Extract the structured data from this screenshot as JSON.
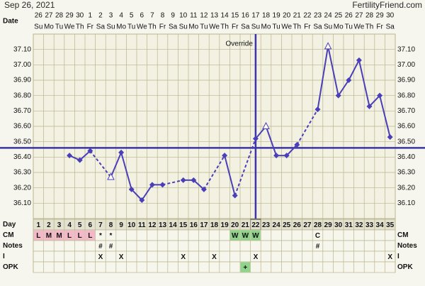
{
  "header": {
    "title": "Sep 26, 2021",
    "site": "FertilityFriend.com"
  },
  "chart_data": {
    "type": "line",
    "date_label": "Date",
    "dates": [
      26,
      27,
      28,
      29,
      30,
      1,
      2,
      3,
      4,
      5,
      6,
      7,
      8,
      9,
      10,
      11,
      12,
      13,
      14,
      15,
      16,
      17,
      18,
      19,
      20,
      21,
      22,
      23,
      24,
      25,
      26,
      27,
      28,
      29,
      30
    ],
    "weekdays": [
      "Su",
      "Mo",
      "Tu",
      "We",
      "Th",
      "Fr",
      "Sa",
      "Su",
      "Mo",
      "Tu",
      "We",
      "Th",
      "Fr",
      "Sa",
      "Su",
      "Mo",
      "Tu",
      "We",
      "Th",
      "Fr",
      "Sa",
      "Su",
      "Mo",
      "Tu",
      "We",
      "Th",
      "Fr",
      "Sa",
      "Su",
      "Mo",
      "Tu",
      "We",
      "Th",
      "Fr",
      "Sa"
    ],
    "series": [
      {
        "name": "Temperature",
        "color": "#4b3fb8",
        "values": [
          null,
          null,
          null,
          36.41,
          36.38,
          36.44,
          null,
          36.27,
          36.43,
          36.19,
          36.12,
          36.22,
          36.22,
          null,
          36.25,
          36.25,
          36.19,
          null,
          36.41,
          36.15,
          null,
          36.52,
          36.6,
          36.41,
          36.41,
          36.48,
          null,
          36.71,
          37.12,
          36.8,
          36.9,
          37.03,
          36.73,
          36.8,
          36.53
        ]
      }
    ],
    "open_points": [
      8,
      23,
      29
    ],
    "coverline": 36.46,
    "coverline_color": "#3b35a8",
    "ovulation_day": 22,
    "override_label": "Override",
    "ylim": [
      36.0,
      37.2
    ],
    "yticks": [
      {
        "value": 36.1,
        "label": "36.10"
      },
      {
        "value": 36.2,
        "label": "36.20"
      },
      {
        "value": 36.3,
        "label": "36.30"
      },
      {
        "value": 36.4,
        "label": "36.40"
      },
      {
        "value": 36.5,
        "label": "36.50"
      },
      {
        "value": 36.6,
        "label": "36.60"
      },
      {
        "value": 36.7,
        "label": "36.70"
      },
      {
        "value": 36.8,
        "label": "36.80"
      },
      {
        "value": 36.9,
        "label": "36.90"
      },
      {
        "value": 37.0,
        "label": "37.00"
      },
      {
        "value": 37.1,
        "label": "37.10"
      }
    ],
    "grid": true,
    "rows": [
      {
        "label": "Day",
        "cells": [
          1,
          2,
          3,
          4,
          5,
          6,
          7,
          8,
          9,
          10,
          11,
          12,
          13,
          14,
          15,
          16,
          17,
          18,
          19,
          20,
          21,
          22,
          23,
          24,
          25,
          26,
          27,
          28,
          29,
          30,
          31,
          32,
          33,
          34,
          35
        ]
      },
      {
        "label": "CM",
        "cells": [
          "L",
          "M",
          "M",
          "L",
          "L",
          "L",
          "*",
          "*",
          null,
          null,
          null,
          null,
          null,
          null,
          null,
          null,
          null,
          null,
          null,
          "W",
          "W",
          "W",
          null,
          null,
          null,
          null,
          null,
          "C",
          null,
          null,
          null,
          null,
          null,
          null,
          null
        ]
      },
      {
        "label": "Notes",
        "cells": [
          null,
          null,
          null,
          null,
          null,
          null,
          "#",
          "#",
          null,
          null,
          null,
          null,
          null,
          null,
          null,
          null,
          null,
          null,
          null,
          null,
          null,
          null,
          null,
          null,
          null,
          null,
          null,
          "#",
          null,
          null,
          null,
          null,
          null,
          null,
          null
        ]
      },
      {
        "label": "I",
        "cells": [
          null,
          null,
          null,
          null,
          null,
          null,
          "X",
          null,
          "X",
          null,
          null,
          null,
          null,
          null,
          "X",
          null,
          null,
          "X",
          null,
          null,
          null,
          "X",
          null,
          null,
          null,
          null,
          null,
          null,
          null,
          null,
          null,
          null,
          null,
          null,
          "X"
        ]
      },
      {
        "label": "OPK",
        "cells": [
          null,
          null,
          null,
          null,
          null,
          null,
          null,
          null,
          null,
          null,
          null,
          null,
          null,
          null,
          null,
          null,
          null,
          null,
          null,
          null,
          "+",
          null,
          null,
          null,
          null,
          null,
          null,
          null,
          null,
          null,
          null,
          null,
          null,
          null,
          null
        ]
      }
    ],
    "cell_colors": {
      "L": "#f3b9c8",
      "M": "#f3b9c8",
      "W": "#8fd48a",
      "+": "#8fd48a"
    }
  }
}
